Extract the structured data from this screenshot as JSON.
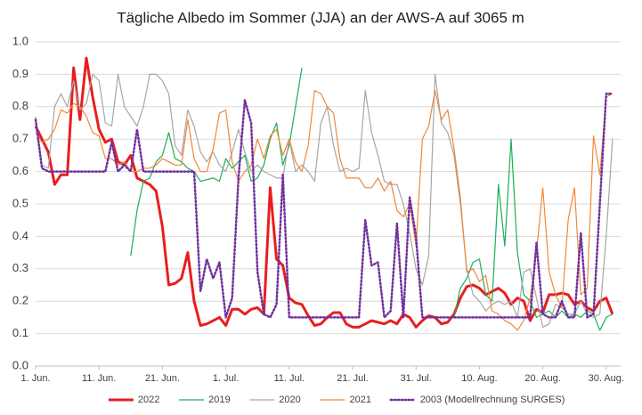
{
  "chart_data": {
    "type": "line",
    "title": "Tägliche Albedo im Sommer (JJA) an der AWS-A auf 3065 m",
    "categories": [
      "1. Jun.",
      null,
      null,
      null,
      null,
      null,
      null,
      null,
      null,
      null,
      "11. Jun.",
      null,
      null,
      null,
      null,
      null,
      null,
      null,
      null,
      null,
      "21. Jun.",
      null,
      null,
      null,
      null,
      null,
      null,
      null,
      null,
      null,
      "1. Jul.",
      null,
      null,
      null,
      null,
      null,
      null,
      null,
      null,
      null,
      "11. Jul.",
      null,
      null,
      null,
      null,
      null,
      null,
      null,
      null,
      null,
      "21. Jul.",
      null,
      null,
      null,
      null,
      null,
      null,
      null,
      null,
      null,
      "31. Jul.",
      null,
      null,
      null,
      null,
      null,
      null,
      null,
      null,
      null,
      "10. Aug.",
      null,
      null,
      null,
      null,
      null,
      null,
      null,
      null,
      null,
      "20. Aug.",
      null,
      null,
      null,
      null,
      null,
      null,
      null,
      null,
      null,
      "30. Aug.",
      null
    ],
    "ylim": [
      0,
      1
    ],
    "yticks": [
      {
        "value": 0,
        "label": "0.0"
      },
      0.1,
      0.2,
      0.3,
      0.4,
      0.5,
      0.6,
      0.7,
      0.8,
      0.9,
      {
        "value": 1,
        "label": "1.0"
      }
    ],
    "grid": true,
    "legend": "bottom",
    "series": [
      {
        "name": "2022",
        "color": "#e81e1e",
        "style": "solid",
        "width": 3,
        "values": [
          0.74,
          0.7,
          0.66,
          0.56,
          0.59,
          0.59,
          0.92,
          0.76,
          0.95,
          0.83,
          0.73,
          0.69,
          0.7,
          0.63,
          0.62,
          0.65,
          0.58,
          0.57,
          0.56,
          0.54,
          0.43,
          0.25,
          0.255,
          0.27,
          0.35,
          0.2,
          0.125,
          0.13,
          0.14,
          0.15,
          0.125,
          0.175,
          0.175,
          0.16,
          0.175,
          0.18,
          0.16,
          0.55,
          0.33,
          0.31,
          0.21,
          0.195,
          0.19,
          0.155,
          0.125,
          0.13,
          0.15,
          0.165,
          0.165,
          0.13,
          0.12,
          0.12,
          0.13,
          0.14,
          0.135,
          0.13,
          0.14,
          0.13,
          0.16,
          0.15,
          0.12,
          0.14,
          0.155,
          0.15,
          0.13,
          0.135,
          0.16,
          0.21,
          0.245,
          0.25,
          0.24,
          0.22,
          0.23,
          0.24,
          0.225,
          0.19,
          0.21,
          0.2,
          0.14,
          0.175,
          0.165,
          0.22,
          0.22,
          0.225,
          0.22,
          0.19,
          0.2,
          0.18,
          0.17,
          0.2,
          0.21,
          0.16
        ]
      },
      {
        "name": "2019",
        "color": "#1aae5a",
        "style": "solid",
        "width": 1.2,
        "values": [
          null,
          null,
          null,
          null,
          null,
          null,
          null,
          null,
          null,
          null,
          null,
          null,
          null,
          null,
          null,
          0.34,
          0.48,
          0.57,
          0.58,
          0.63,
          0.65,
          0.72,
          0.64,
          0.63,
          0.61,
          0.6,
          0.57,
          0.575,
          0.58,
          0.57,
          0.64,
          0.61,
          0.63,
          0.65,
          0.57,
          0.58,
          0.62,
          0.7,
          0.75,
          0.62,
          0.68,
          0.8,
          0.92,
          null,
          null,
          null,
          null,
          null,
          null,
          null,
          null,
          null,
          null,
          null,
          null,
          null,
          null,
          null,
          null,
          null,
          null,
          null,
          null,
          null,
          null,
          null,
          0.15,
          0.24,
          0.27,
          0.32,
          0.33,
          0.22,
          0.2,
          0.56,
          0.37,
          0.7,
          0.35,
          0.22,
          0.2,
          0.15,
          0.16,
          0.17,
          0.15,
          0.17,
          0.15,
          0.16,
          0.15,
          0.17,
          0.16,
          0.11,
          0.15,
          0.16
        ]
      },
      {
        "name": "2020",
        "color": "#a6a6a6",
        "style": "solid",
        "width": 1.2,
        "values": [
          0.77,
          0.62,
          0.61,
          0.8,
          0.84,
          0.8,
          0.88,
          0.79,
          0.81,
          0.9,
          0.88,
          0.75,
          0.74,
          0.9,
          0.8,
          0.77,
          0.74,
          0.8,
          0.9,
          0.9,
          0.88,
          0.84,
          0.68,
          0.65,
          0.79,
          0.74,
          0.66,
          0.63,
          0.66,
          0.62,
          0.6,
          0.66,
          0.73,
          0.66,
          0.6,
          0.62,
          0.6,
          0.59,
          0.58,
          0.58,
          0.7,
          0.6,
          0.62,
          0.6,
          0.57,
          0.75,
          0.8,
          0.68,
          0.6,
          0.61,
          0.6,
          0.61,
          0.85,
          0.72,
          0.65,
          0.57,
          0.56,
          0.56,
          0.5,
          0.41,
          0.3,
          0.25,
          0.34,
          0.9,
          0.75,
          0.72,
          0.65,
          0.5,
          0.3,
          0.22,
          0.2,
          0.17,
          0.19,
          0.2,
          0.19,
          0.2,
          0.15,
          0.29,
          0.3,
          0.21,
          0.12,
          0.13,
          0.19,
          0.18,
          0.16,
          0.16,
          0.2,
          0.16,
          0.15,
          0.16,
          0.4,
          0.7
        ]
      },
      {
        "name": "2021",
        "color": "#f0883a",
        "style": "solid",
        "width": 1.2,
        "values": [
          0.72,
          0.69,
          0.7,
          0.73,
          0.79,
          0.78,
          0.81,
          0.8,
          0.77,
          0.72,
          0.71,
          0.64,
          0.64,
          0.62,
          0.63,
          0.6,
          0.6,
          0.61,
          0.61,
          0.62,
          0.64,
          0.63,
          0.62,
          0.62,
          0.76,
          0.64,
          0.6,
          0.6,
          0.67,
          0.78,
          0.79,
          0.63,
          0.57,
          0.6,
          0.62,
          0.7,
          0.64,
          0.71,
          0.73,
          0.65,
          0.7,
          0.63,
          0.6,
          0.68,
          0.85,
          0.84,
          0.8,
          0.78,
          0.64,
          0.58,
          0.58,
          0.58,
          0.55,
          0.55,
          0.58,
          0.54,
          0.57,
          0.48,
          0.46,
          0.5,
          0.37,
          0.7,
          0.74,
          0.85,
          0.76,
          0.79,
          0.67,
          0.52,
          0.29,
          0.3,
          0.26,
          0.28,
          0.17,
          0.16,
          0.14,
          0.13,
          0.11,
          0.14,
          0.21,
          0.35,
          0.55,
          0.29,
          0.22,
          0.18,
          0.45,
          0.55,
          0.22,
          0.24,
          0.71,
          0.59,
          0.83,
          0.84
        ]
      },
      {
        "name": "2003 (Modellrechnung SURGES)",
        "color": "#7030a0",
        "style": "dotted",
        "width": 2.5,
        "values": [
          0.76,
          0.61,
          0.6,
          0.6,
          0.6,
          0.6,
          0.6,
          0.6,
          0.6,
          0.6,
          0.6,
          0.6,
          0.69,
          0.6,
          0.62,
          0.6,
          0.73,
          0.6,
          0.6,
          0.6,
          0.6,
          0.6,
          0.6,
          0.6,
          0.6,
          0.6,
          0.23,
          0.33,
          0.27,
          0.32,
          0.15,
          0.21,
          0.58,
          0.82,
          0.75,
          0.29,
          0.16,
          0.15,
          0.19,
          0.59,
          0.15,
          0.15,
          0.15,
          0.15,
          0.15,
          0.15,
          0.15,
          0.15,
          0.15,
          0.15,
          0.15,
          0.15,
          0.45,
          0.31,
          0.32,
          0.15,
          0.17,
          0.44,
          0.15,
          0.52,
          0.4,
          0.15,
          0.15,
          0.15,
          0.15,
          0.15,
          0.15,
          0.15,
          0.15,
          0.15,
          0.15,
          0.15,
          0.15,
          0.15,
          0.15,
          0.15,
          0.15,
          0.15,
          0.15,
          0.38,
          0.16,
          0.15,
          0.15,
          0.2,
          0.15,
          0.15,
          0.41,
          0.15,
          0.16,
          0.5,
          0.84,
          0.84
        ]
      }
    ]
  }
}
